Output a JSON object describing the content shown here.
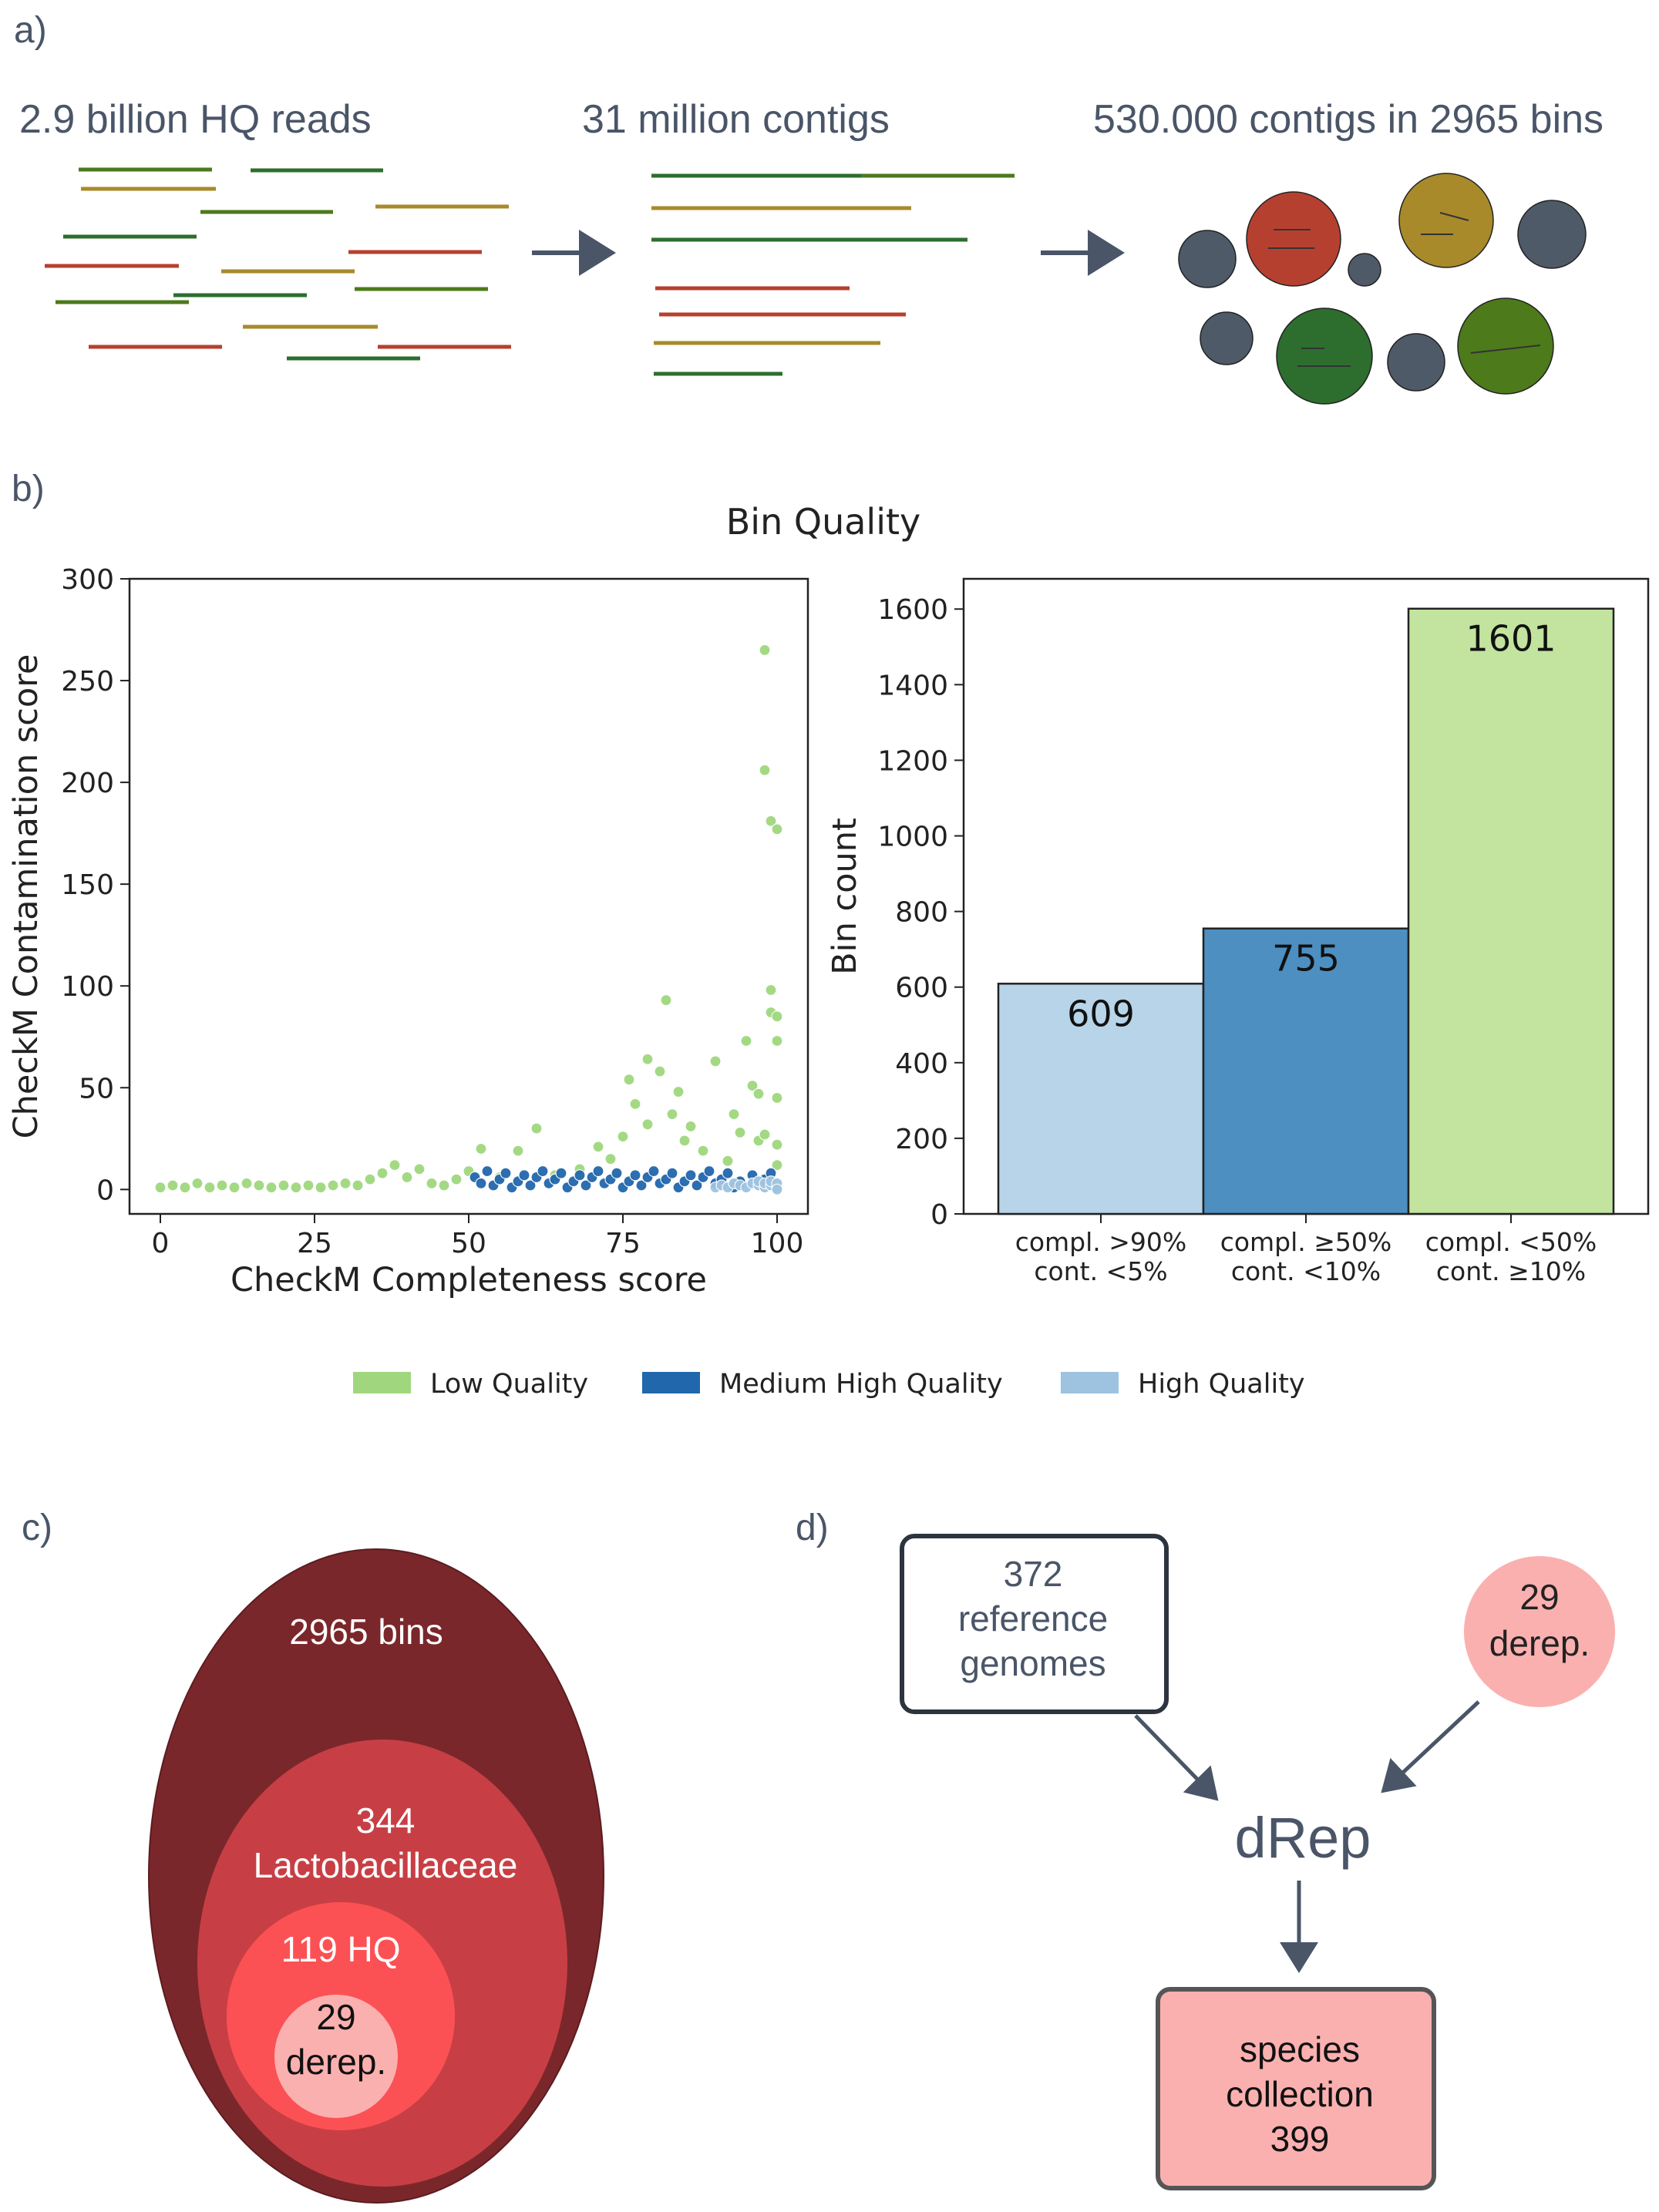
{
  "panel_a": {
    "label": "a)",
    "step1": "2.9 billion HQ reads",
    "step2": "31 million contigs",
    "step3": "530.000 contigs in 2965 bins"
  },
  "colors": {
    "low": "#a0d77e",
    "medium": "#2167ac",
    "high": "#9dc3e0",
    "bar_high": "#b7d4e9",
    "bar_medium": "#4d8fc1",
    "bar_low": "#c2e49e",
    "read_red": "#b6402f",
    "read_green": "#2d6e2e",
    "read_olive": "#4d7a1a",
    "read_gold": "#a88a2b",
    "bin_gray": "#4f5a69",
    "ellipse_outer": "#7a272b",
    "ellipse_mid": "#c73f45",
    "ellipse_inner": "#fc5154",
    "ellipse_core": "#fbb0b0",
    "arrow": "#4a5568"
  },
  "panel_b": {
    "label": "b)",
    "title": "Bin Quality"
  },
  "chart_data": [
    {
      "type": "scatter",
      "xlabel": "CheckM Completeness score",
      "ylabel": "CheckM Contamination score",
      "xlim": [
        -5,
        105
      ],
      "ylim": [
        -12,
        300
      ],
      "xticks": [
        0,
        25,
        50,
        75,
        100
      ],
      "yticks": [
        0,
        50,
        100,
        150,
        200,
        250,
        300
      ],
      "series": [
        {
          "name": "Low Quality",
          "color": "#a0d77e",
          "points": [
            [
              0,
              1
            ],
            [
              2,
              2
            ],
            [
              4,
              1
            ],
            [
              6,
              3
            ],
            [
              8,
              1
            ],
            [
              10,
              2
            ],
            [
              12,
              1
            ],
            [
              14,
              3
            ],
            [
              16,
              2
            ],
            [
              18,
              1
            ],
            [
              20,
              2
            ],
            [
              22,
              1
            ],
            [
              24,
              2
            ],
            [
              26,
              1
            ],
            [
              28,
              2
            ],
            [
              30,
              3
            ],
            [
              32,
              2
            ],
            [
              34,
              5
            ],
            [
              36,
              8
            ],
            [
              38,
              12
            ],
            [
              40,
              6
            ],
            [
              42,
              10
            ],
            [
              44,
              3
            ],
            [
              46,
              2
            ],
            [
              48,
              5
            ],
            [
              50,
              9
            ],
            [
              52,
              20
            ],
            [
              55,
              6
            ],
            [
              58,
              19
            ],
            [
              61,
              30
            ],
            [
              64,
              7
            ],
            [
              68,
              10
            ],
            [
              71,
              21
            ],
            [
              73,
              15
            ],
            [
              75,
              26
            ],
            [
              76,
              54
            ],
            [
              77,
              42
            ],
            [
              79,
              32
            ],
            [
              79,
              64
            ],
            [
              81,
              58
            ],
            [
              82,
              93
            ],
            [
              83,
              37
            ],
            [
              84,
              48
            ],
            [
              85,
              24
            ],
            [
              86,
              31
            ],
            [
              88,
              19
            ],
            [
              90,
              63
            ],
            [
              92,
              14
            ],
            [
              93,
              37
            ],
            [
              94,
              28
            ],
            [
              95,
              73
            ],
            [
              96,
              51
            ],
            [
              97,
              24
            ],
            [
              97,
              47
            ],
            [
              98,
              27
            ],
            [
              98,
              265
            ],
            [
              98,
              206
            ],
            [
              99,
              181
            ],
            [
              99,
              98
            ],
            [
              99,
              87
            ],
            [
              100,
              177
            ],
            [
              100,
              85
            ],
            [
              100,
              73
            ],
            [
              100,
              45
            ],
            [
              100,
              22
            ],
            [
              100,
              12
            ]
          ]
        },
        {
          "name": "Medium High Quality",
          "color": "#2167ac",
          "points": [
            [
              51,
              6
            ],
            [
              52,
              3
            ],
            [
              53,
              9
            ],
            [
              54,
              2
            ],
            [
              55,
              5
            ],
            [
              56,
              8
            ],
            [
              57,
              1
            ],
            [
              58,
              4
            ],
            [
              59,
              7
            ],
            [
              60,
              2
            ],
            [
              61,
              6
            ],
            [
              62,
              9
            ],
            [
              63,
              3
            ],
            [
              64,
              5
            ],
            [
              65,
              8
            ],
            [
              66,
              1
            ],
            [
              67,
              4
            ],
            [
              68,
              7
            ],
            [
              69,
              2
            ],
            [
              70,
              6
            ],
            [
              71,
              9
            ],
            [
              72,
              3
            ],
            [
              73,
              5
            ],
            [
              74,
              8
            ],
            [
              75,
              1
            ],
            [
              76,
              4
            ],
            [
              77,
              7
            ],
            [
              78,
              2
            ],
            [
              79,
              6
            ],
            [
              80,
              9
            ],
            [
              81,
              3
            ],
            [
              82,
              5
            ],
            [
              83,
              8
            ],
            [
              84,
              1
            ],
            [
              85,
              4
            ],
            [
              86,
              7
            ],
            [
              87,
              2
            ],
            [
              88,
              6
            ],
            [
              89,
              9
            ],
            [
              90,
              3
            ],
            [
              91,
              5
            ],
            [
              92,
              8
            ],
            [
              93,
              1
            ],
            [
              94,
              4
            ],
            [
              96,
              7
            ],
            [
              98,
              5
            ],
            [
              99,
              8
            ]
          ]
        },
        {
          "name": "High Quality",
          "color": "#9dc3e0",
          "points": [
            [
              90,
              1
            ],
            [
              91,
              2
            ],
            [
              92,
              1
            ],
            [
              93,
              3
            ],
            [
              94,
              2
            ],
            [
              95,
              1
            ],
            [
              96,
              3
            ],
            [
              97,
              2
            ],
            [
              97,
              4
            ],
            [
              98,
              1
            ],
            [
              98,
              3
            ],
            [
              99,
              2
            ],
            [
              99,
              4
            ],
            [
              100,
              1
            ],
            [
              100,
              3
            ],
            [
              100,
              0
            ]
          ]
        }
      ]
    },
    {
      "type": "bar",
      "ylabel": "Bin count",
      "ylim": [
        0,
        1680
      ],
      "yticks": [
        0,
        200,
        400,
        600,
        800,
        1000,
        1200,
        1400,
        1600
      ],
      "categories": [
        [
          "compl. >90%",
          "cont. <5%"
        ],
        [
          "compl. ≥50%",
          "cont. <10%"
        ],
        [
          "compl. <50%",
          "cont. ≥10%"
        ]
      ],
      "values": [
        609,
        755,
        1601
      ],
      "colors": [
        "#b7d4e9",
        "#4d8fc1",
        "#c2e49e"
      ]
    }
  ],
  "legend": {
    "items": [
      {
        "label": "Low Quality",
        "color": "#a0d77e"
      },
      {
        "label": "Medium High Quality",
        "color": "#2167ac"
      },
      {
        "label": "High Quality",
        "color": "#9dc3e0"
      }
    ]
  },
  "panel_c": {
    "label": "c)",
    "outer": "2965 bins",
    "mid_line1": "344",
    "mid_line2": "Lactobacillaceae",
    "inner": "119 HQ",
    "core_line1": "29",
    "core_line2": "derep."
  },
  "panel_d": {
    "label": "d)",
    "ref_line1": "372",
    "ref_line2": "reference",
    "ref_line3": "genomes",
    "derep_line1": "29",
    "derep_line2": "derep.",
    "tool": "dRep",
    "out_line1": "species",
    "out_line2": "collection",
    "out_line3": "399"
  }
}
